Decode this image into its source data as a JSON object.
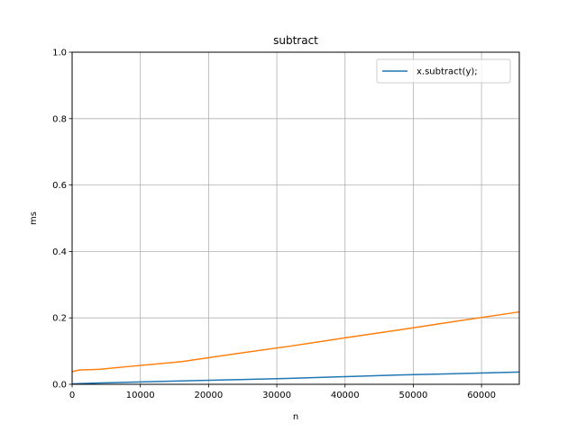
{
  "chart_data": {
    "type": "line",
    "title": "subtract",
    "xlabel": "n",
    "ylabel": "ms",
    "xlim": [
      0,
      65536
    ],
    "ylim": [
      0,
      1.0
    ],
    "xticks": [
      0,
      10000,
      20000,
      30000,
      40000,
      50000,
      60000
    ],
    "xtick_labels": [
      "0",
      "10000",
      "20000",
      "30000",
      "40000",
      "50000",
      "60000"
    ],
    "yticks": [
      0.0,
      0.2,
      0.4,
      0.6,
      0.8,
      1.0
    ],
    "ytick_labels": [
      "0.0",
      "0.2",
      "0.4",
      "0.6",
      "0.8",
      "1.0"
    ],
    "grid": true,
    "legend_position": "top-right",
    "series": [
      {
        "name": "x.subtract(y);",
        "color": "#1f77b4",
        "x": [
          0,
          1000,
          4000,
          8000,
          16000,
          24000,
          32000,
          40000,
          48000,
          56000,
          65536
        ],
        "y": [
          0.001,
          0.002,
          0.004,
          0.006,
          0.01,
          0.014,
          0.018,
          0.023,
          0.028,
          0.032,
          0.037
        ]
      },
      {
        "name": "",
        "color": "#ff7f0e",
        "x": [
          0,
          1000,
          4000,
          8000,
          16000,
          24000,
          32000,
          40000,
          48000,
          56000,
          65536
        ],
        "y": [
          0.038,
          0.043,
          0.045,
          0.053,
          0.068,
          0.092,
          0.115,
          0.14,
          0.164,
          0.189,
          0.218
        ]
      }
    ]
  }
}
